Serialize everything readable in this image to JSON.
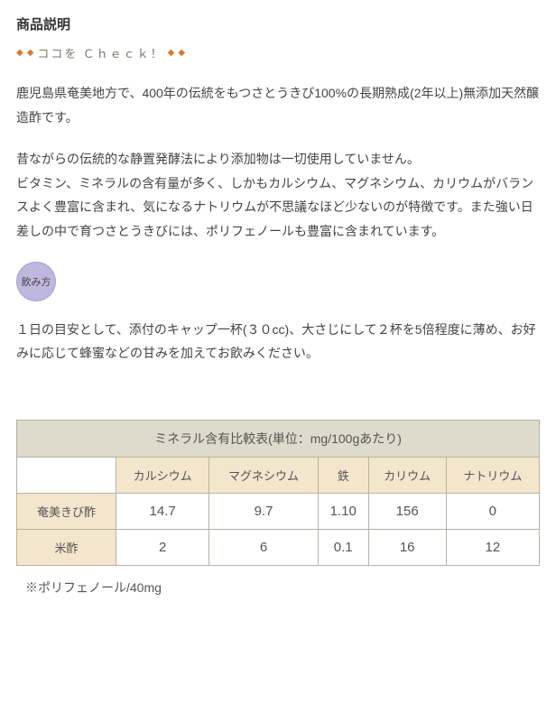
{
  "section_title": "商品説明",
  "check_label": "ココを Ｃｈｅｃｋ！",
  "diamond_glyph": "◆",
  "diamond_color": "#d97a2e",
  "check_text_color": "#7a7a6a",
  "para1": "鹿児島県奄美地方で、400年の伝統をもつさとうきび100%の長期熟成(2年以上)無添加天然醸造酢です。",
  "para2": "昔ながらの伝統的な静置発酵法により添加物は一切使用していません。\nビタミン、ミネラルの含有量が多く、しかもカルシウム、マグネシウム、カリウムがバランスよく豊富に含まれ、気になるナトリウムが不思議なほど少ないのが特徴です。また強い日差しの中で育つさとうきびには、ポリフェノールも豊富に含まれています。",
  "usage_badge": "飲み方",
  "usage_badge_bg": "#bfb7de",
  "para3": "１日の目安として、添付のキャップ一杯(３０cc)、大さじにして２杯を5倍程度に薄め、お好みに応じて蜂蜜などの甘みを加えてお飲みください。",
  "mineral_table": {
    "title": "ミネラル含有比較表(単位：mg/100gあたり)",
    "title_bg": "#dedacc",
    "header_bg": "#f4e5cd",
    "border_color": "#b7b2a3",
    "columns": [
      "カルシウム",
      "マグネシウム",
      "鉄",
      "カリウム",
      "ナトリウム"
    ],
    "rows": [
      {
        "label": "奄美きび酢",
        "values": [
          "14.7",
          "9.7",
          "1.10",
          "156",
          "0"
        ]
      },
      {
        "label": "米酢",
        "values": [
          "2",
          "6",
          "0.1",
          "16",
          "12"
        ]
      }
    ]
  },
  "footnote": "※ポリフェノール/40mg"
}
